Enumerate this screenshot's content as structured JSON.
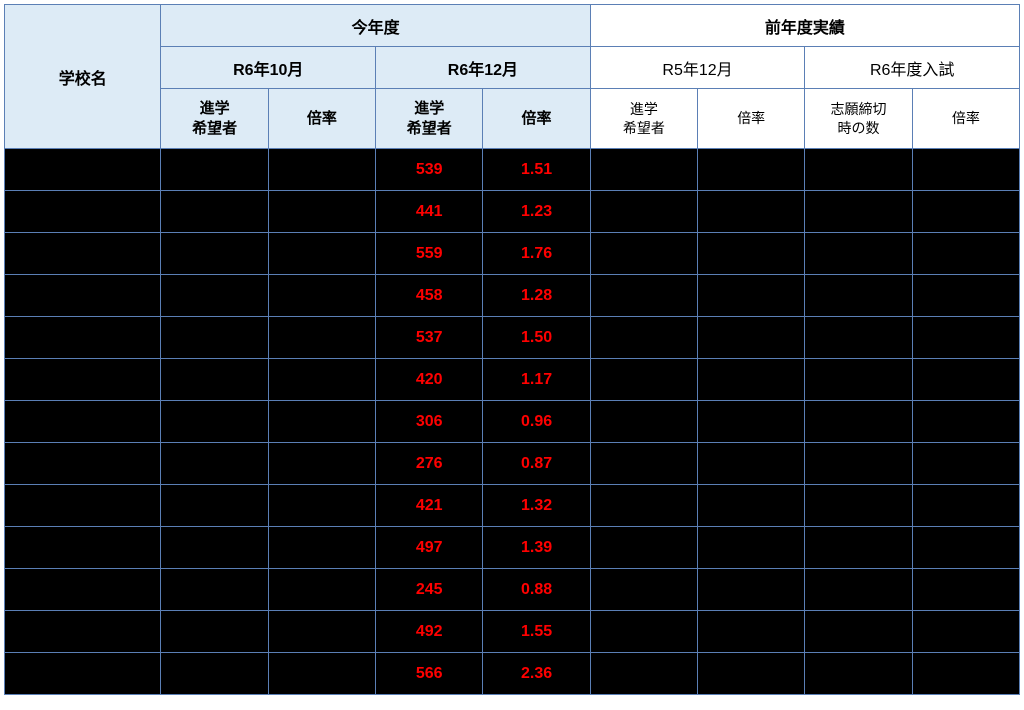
{
  "headers": {
    "school": "学校名",
    "this_year": "今年度",
    "prev_year": "前年度実績",
    "r6_oct": "R6年10月",
    "r6_dec": "R6年12月",
    "r5_dec": "R5年12月",
    "r6_exam": "R6年度入試",
    "applicants": "進学\n希望者",
    "ratio": "倍率",
    "deadline_count": "志願締切\n時の数"
  },
  "rows": [
    {
      "applicants": "539",
      "ratio": "1.51"
    },
    {
      "applicants": "441",
      "ratio": "1.23"
    },
    {
      "applicants": "559",
      "ratio": "1.76"
    },
    {
      "applicants": "458",
      "ratio": "1.28"
    },
    {
      "applicants": "537",
      "ratio": "1.50"
    },
    {
      "applicants": "420",
      "ratio": "1.17"
    },
    {
      "applicants": "306",
      "ratio": "0.96"
    },
    {
      "applicants": "276",
      "ratio": "0.87"
    },
    {
      "applicants": "421",
      "ratio": "1.32"
    },
    {
      "applicants": "497",
      "ratio": "1.39"
    },
    {
      "applicants": "245",
      "ratio": "0.88"
    },
    {
      "applicants": "492",
      "ratio": "1.55"
    },
    {
      "applicants": "566",
      "ratio": "2.36"
    }
  ],
  "style": {
    "border_color": "#5b7fb5",
    "header_bg": "#ddebf6",
    "black_bg": "#000000",
    "highlight_text": "#ff0000"
  }
}
